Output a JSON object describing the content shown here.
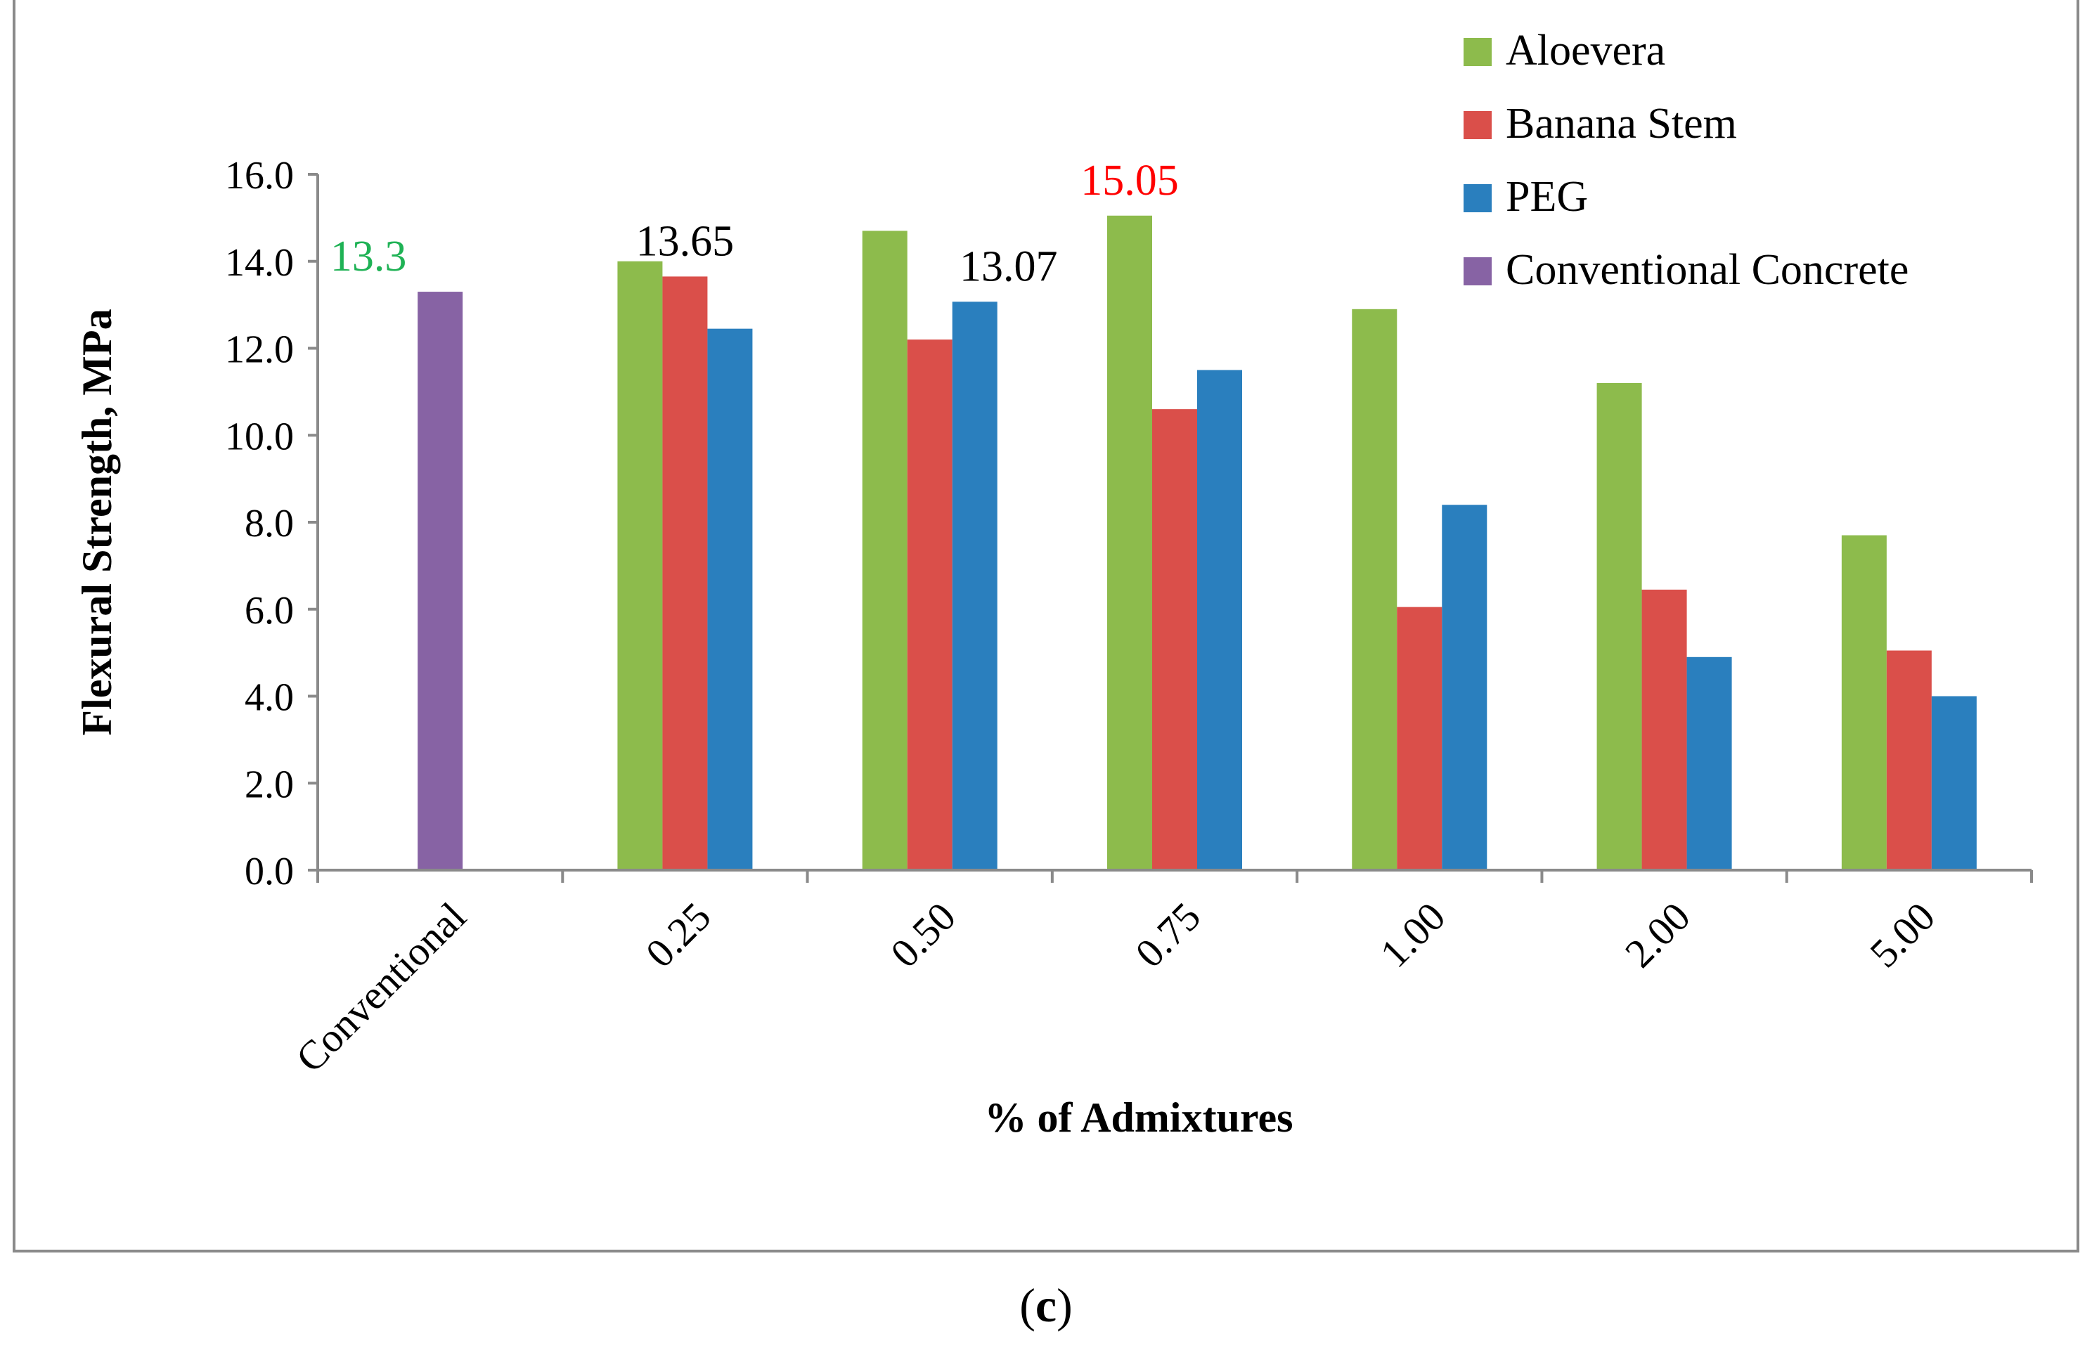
{
  "chart_data": {
    "type": "bar",
    "title": "",
    "xlabel": "% of Admixtures",
    "ylabel": "Flexural Strength, MPa",
    "ylim": [
      0,
      16
    ],
    "ytick_step": 2,
    "ytick_labels": [
      "0.0",
      "2.0",
      "4.0",
      "6.0",
      "8.0",
      "10.0",
      "12.0",
      "14.0",
      "16.0"
    ],
    "grid": false,
    "legend_position": "top-right",
    "categories": [
      "Conventional",
      "0.25",
      "0.50",
      "0.75",
      "1.00",
      "2.00",
      "5.00"
    ],
    "series": [
      {
        "name": "Aloevera",
        "color": "#8dbb4c",
        "values": [
          null,
          14.0,
          14.7,
          15.05,
          12.9,
          11.2,
          7.7
        ]
      },
      {
        "name": "Banana Stem",
        "color": "#da4f4a",
        "values": [
          null,
          13.65,
          12.2,
          10.6,
          6.05,
          6.45,
          5.05
        ]
      },
      {
        "name": "PEG",
        "color": "#2a7fbe",
        "values": [
          null,
          12.45,
          13.07,
          11.5,
          8.4,
          4.9,
          4.0
        ]
      },
      {
        "name": "Conventional Concrete",
        "color": "#8763a4",
        "values": [
          13.3,
          null,
          null,
          null,
          null,
          null,
          null
        ]
      }
    ],
    "annotations": [
      {
        "text": "13.3",
        "category": "Conventional",
        "series": "Conventional Concrete",
        "color": "#1fb255"
      },
      {
        "text": "13.65",
        "category": "0.25",
        "series": "Banana Stem",
        "color": "#000000"
      },
      {
        "text": "13.07",
        "category": "0.50",
        "series": "PEG",
        "color": "#000000"
      },
      {
        "text": "15.05",
        "category": "0.75",
        "series": "Aloevera",
        "color": "#ff0000"
      }
    ]
  },
  "caption": {
    "open": "(",
    "letter": "c",
    "close": ")"
  }
}
